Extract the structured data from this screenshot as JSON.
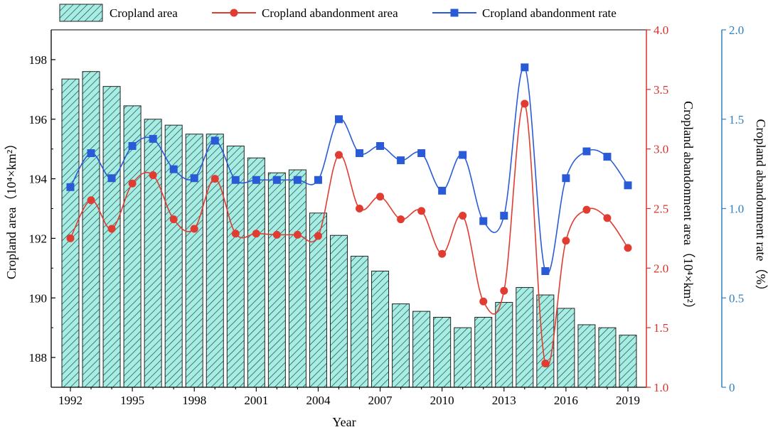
{
  "chart_data": {
    "type": "bar+line",
    "xlabel": "Year",
    "x_ticks": [
      "1992",
      "1995",
      "1998",
      "2001",
      "2004",
      "2007",
      "2010",
      "2013",
      "2016",
      "2019"
    ],
    "years": [
      1992,
      1993,
      1994,
      1995,
      1996,
      1997,
      1998,
      1999,
      2000,
      2001,
      2002,
      2003,
      2004,
      2005,
      2006,
      2007,
      2008,
      2009,
      2010,
      2011,
      2012,
      2013,
      2014,
      2015,
      2016,
      2017,
      2018,
      2019
    ],
    "axes": {
      "left": {
        "label": "Cropland area（10⁴×km²）",
        "range": [
          187,
          199
        ],
        "ticks": [
          188,
          190,
          192,
          194,
          196,
          198
        ],
        "color": "#000000"
      },
      "right1": {
        "label": "Cropland abandonment area（10⁴×km²）",
        "range": [
          1.0,
          4.0
        ],
        "ticks": [
          "1.0",
          "1.5",
          "2.0",
          "2.5",
          "3.0",
          "3.5",
          "4.0"
        ],
        "color": "#d9322b"
      },
      "right2": {
        "label": "Cropland abandonment rate（%）",
        "range": [
          0,
          2.0
        ],
        "ticks": [
          "0",
          "0.5",
          "1.0",
          "1.5",
          "2.0"
        ],
        "color": "#2f7fc1"
      }
    },
    "series": [
      {
        "name": "Cropland area",
        "kind": "bar",
        "axis": "left",
        "fill": "#a6ede4",
        "values": [
          197.35,
          197.6,
          197.1,
          196.45,
          196.0,
          195.8,
          195.5,
          195.5,
          195.1,
          194.7,
          194.2,
          194.3,
          192.85,
          192.1,
          191.4,
          190.9,
          189.8,
          189.55,
          189.35,
          189.0,
          189.35,
          189.85,
          190.35,
          190.1,
          189.65,
          189.1,
          189.0,
          188.75
        ]
      },
      {
        "name": "Cropland abandonment area",
        "kind": "line",
        "axis": "right1",
        "color": "#e03c31",
        "values": [
          2.25,
          2.57,
          2.33,
          2.71,
          2.78,
          2.41,
          2.33,
          2.75,
          2.29,
          2.29,
          2.28,
          2.28,
          2.27,
          2.95,
          2.5,
          2.6,
          2.41,
          2.48,
          2.12,
          2.44,
          1.72,
          1.81,
          3.38,
          1.2,
          2.23,
          2.49,
          2.42,
          2.17
        ]
      },
      {
        "name": "Cropland abandonment rate",
        "kind": "line",
        "axis": "right2",
        "color": "#2a5bd7",
        "values": [
          1.12,
          1.31,
          1.17,
          1.35,
          1.39,
          1.22,
          1.17,
          1.38,
          1.16,
          1.16,
          1.16,
          1.16,
          1.16,
          1.5,
          1.31,
          1.35,
          1.27,
          1.31,
          1.1,
          1.3,
          0.93,
          0.96,
          1.79,
          0.65,
          1.17,
          1.32,
          1.29,
          1.13
        ]
      }
    ],
    "legend": {
      "placement": "top",
      "entries": [
        "Cropland area",
        "Cropland abandonment area",
        "Cropland abandonment rate"
      ]
    },
    "grid": false
  }
}
